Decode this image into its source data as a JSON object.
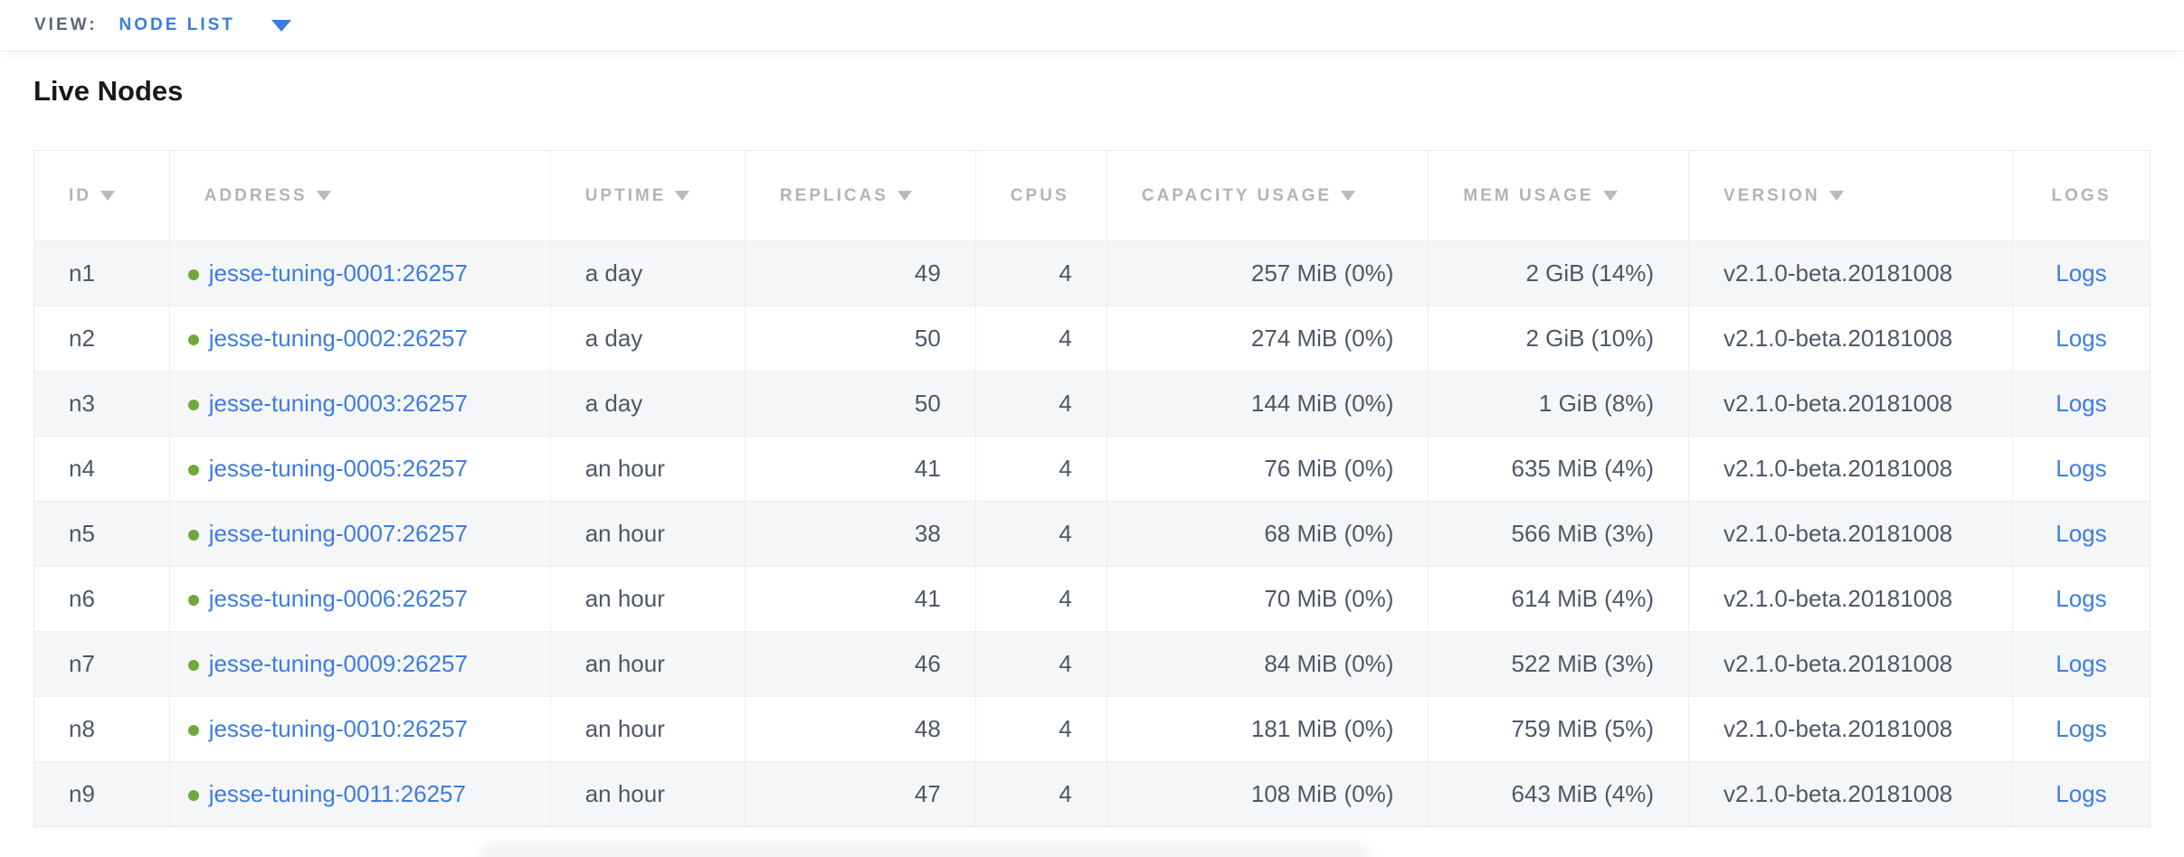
{
  "view_bar": {
    "label": "VIEW:",
    "selected": "NODE LIST",
    "caret_icon": "caret-down-icon"
  },
  "page": {
    "title": "Live Nodes"
  },
  "colors": {
    "accent_blue": "#3a7ce1",
    "link_blue": "#3d7ce2",
    "live_green": "#71a83d",
    "header_gray": "#b0b4ba",
    "body_text": "#4e5768",
    "row_stripe": "#f5f6f7"
  },
  "table": {
    "columns": [
      {
        "key": "id",
        "label": "ID",
        "sortable": true
      },
      {
        "key": "address",
        "label": "ADDRESS",
        "sortable": true
      },
      {
        "key": "uptime",
        "label": "UPTIME",
        "sortable": true
      },
      {
        "key": "replicas",
        "label": "REPLICAS",
        "sortable": true
      },
      {
        "key": "cpus",
        "label": "CPUS",
        "sortable": false
      },
      {
        "key": "capacity",
        "label": "CAPACITY USAGE",
        "sortable": true
      },
      {
        "key": "mem",
        "label": "MEM USAGE",
        "sortable": true
      },
      {
        "key": "version",
        "label": "VERSION",
        "sortable": true
      },
      {
        "key": "logs",
        "label": "LOGS",
        "sortable": false
      }
    ],
    "rows": [
      {
        "id": "n1",
        "address": "jesse-tuning-0001:26257",
        "uptime": "a day",
        "replicas": "49",
        "cpus": "4",
        "capacity": "257 MiB (0%)",
        "mem": "2 GiB (14%)",
        "version": "v2.1.0-beta.20181008",
        "logs": "Logs"
      },
      {
        "id": "n2",
        "address": "jesse-tuning-0002:26257",
        "uptime": "a day",
        "replicas": "50",
        "cpus": "4",
        "capacity": "274 MiB (0%)",
        "mem": "2 GiB (10%)",
        "version": "v2.1.0-beta.20181008",
        "logs": "Logs"
      },
      {
        "id": "n3",
        "address": "jesse-tuning-0003:26257",
        "uptime": "a day",
        "replicas": "50",
        "cpus": "4",
        "capacity": "144 MiB (0%)",
        "mem": "1 GiB (8%)",
        "version": "v2.1.0-beta.20181008",
        "logs": "Logs"
      },
      {
        "id": "n4",
        "address": "jesse-tuning-0005:26257",
        "uptime": "an hour",
        "replicas": "41",
        "cpus": "4",
        "capacity": "76 MiB (0%)",
        "mem": "635 MiB (4%)",
        "version": "v2.1.0-beta.20181008",
        "logs": "Logs"
      },
      {
        "id": "n5",
        "address": "jesse-tuning-0007:26257",
        "uptime": "an hour",
        "replicas": "38",
        "cpus": "4",
        "capacity": "68 MiB (0%)",
        "mem": "566 MiB (3%)",
        "version": "v2.1.0-beta.20181008",
        "logs": "Logs"
      },
      {
        "id": "n6",
        "address": "jesse-tuning-0006:26257",
        "uptime": "an hour",
        "replicas": "41",
        "cpus": "4",
        "capacity": "70 MiB (0%)",
        "mem": "614 MiB (4%)",
        "version": "v2.1.0-beta.20181008",
        "logs": "Logs"
      },
      {
        "id": "n7",
        "address": "jesse-tuning-0009:26257",
        "uptime": "an hour",
        "replicas": "46",
        "cpus": "4",
        "capacity": "84 MiB (0%)",
        "mem": "522 MiB (3%)",
        "version": "v2.1.0-beta.20181008",
        "logs": "Logs"
      },
      {
        "id": "n8",
        "address": "jesse-tuning-0010:26257",
        "uptime": "an hour",
        "replicas": "48",
        "cpus": "4",
        "capacity": "181 MiB (0%)",
        "mem": "759 MiB (5%)",
        "version": "v2.1.0-beta.20181008",
        "logs": "Logs"
      },
      {
        "id": "n9",
        "address": "jesse-tuning-0011:26257",
        "uptime": "an hour",
        "replicas": "47",
        "cpus": "4",
        "capacity": "108 MiB (0%)",
        "mem": "643 MiB (4%)",
        "version": "v2.1.0-beta.20181008",
        "logs": "Logs"
      }
    ]
  }
}
